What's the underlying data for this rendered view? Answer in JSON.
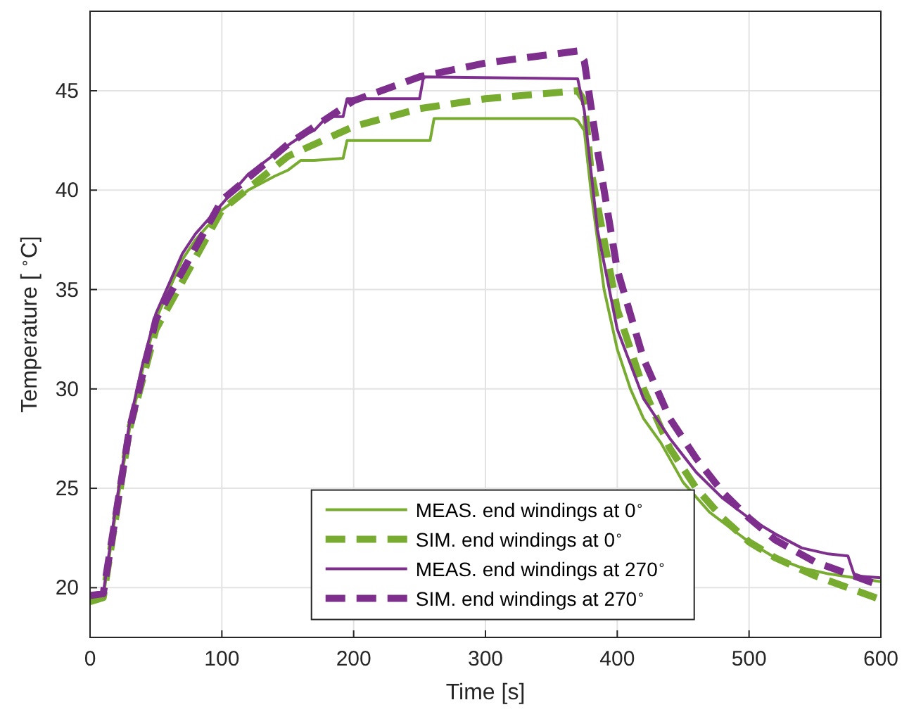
{
  "chart_data": {
    "type": "line",
    "xlabel": "Time [s]",
    "ylabel": "Temperature [ $^{∘}$C]",
    "xlim": [
      0,
      600
    ],
    "ylim": [
      17.5,
      49
    ],
    "xticks": [
      0,
      100,
      200,
      300,
      400,
      500,
      600
    ],
    "yticks": [
      20,
      25,
      30,
      35,
      40,
      45
    ],
    "grid": true,
    "legend": "bottom",
    "marker": "none",
    "series": [
      {
        "name": "MEAS. end windings at 0$^{∘}$",
        "color": "#77ac30",
        "line_style": "solid",
        "x": [
          0,
          10,
          20,
          30,
          40,
          50,
          60,
          70,
          80,
          100,
          120,
          140,
          150,
          160,
          170,
          192,
          195,
          258,
          261,
          367,
          370,
          375,
          380,
          390,
          400,
          410,
          420,
          433,
          450,
          470,
          490,
          500,
          520,
          540,
          560,
          580,
          600
        ],
        "values": [
          19.3,
          19.5,
          24,
          28,
          31,
          33.5,
          35,
          36.5,
          37.5,
          39,
          40,
          40.7,
          41,
          41.5,
          41.5,
          41.6,
          42.5,
          42.5,
          43.6,
          43.6,
          43.5,
          43,
          40,
          35,
          32,
          30,
          28.5,
          27.3,
          25.3,
          23.8,
          22.8,
          22.3,
          21.5,
          21,
          20.7,
          20.5,
          20.3
        ]
      },
      {
        "name": "SIM. end windings at 0$^{∘}$",
        "color": "#77ac30",
        "line_style": "dashed",
        "x": [
          0,
          10,
          30,
          50,
          100,
          150,
          200,
          250,
          300,
          370,
          375,
          380,
          400,
          420,
          440,
          460,
          480,
          500,
          520,
          550,
          600
        ],
        "values": [
          19.3,
          19.5,
          28,
          33,
          39,
          41.7,
          43.2,
          44.1,
          44.6,
          45,
          44.5,
          41,
          34,
          30,
          27,
          25,
          23.5,
          22.3,
          21.5,
          20.6,
          19.4
        ]
      },
      {
        "name": "MEAS. end windings at 270$^{∘}$",
        "color": "#7e2f8e",
        "line_style": "solid",
        "x": [
          0,
          10,
          20,
          30,
          40,
          50,
          60,
          70,
          80,
          100,
          120,
          140,
          160,
          170,
          180,
          192,
          195,
          250,
          253,
          370,
          375,
          385,
          400,
          420,
          440,
          460,
          480,
          500,
          520,
          540,
          560,
          575,
          580,
          600
        ],
        "values": [
          19.7,
          19.7,
          24.3,
          28.3,
          31.3,
          33.8,
          35.3,
          36.8,
          37.8,
          39.3,
          40.8,
          41.8,
          42.7,
          43,
          43.7,
          43.7,
          44.6,
          44.6,
          45.7,
          45.6,
          44,
          38,
          33,
          29.5,
          27.5,
          25.8,
          24.5,
          23.5,
          22.7,
          22,
          21.7,
          21.6,
          20.6,
          20.5
        ]
      },
      {
        "name": "SIM. end windings at 270$^{∘}$",
        "color": "#7e2f8e",
        "line_style": "dashed",
        "x": [
          0,
          10,
          30,
          50,
          100,
          150,
          200,
          250,
          300,
          370,
          375,
          385,
          400,
          420,
          440,
          460,
          480,
          500,
          520,
          550,
          600
        ],
        "values": [
          19.6,
          19.7,
          28,
          33.5,
          39.5,
          42.3,
          44.5,
          45.7,
          46.4,
          47,
          46.5,
          42,
          36,
          31.5,
          28.5,
          26.5,
          24.8,
          23.5,
          22.4,
          21.3,
          20.1
        ]
      }
    ]
  }
}
